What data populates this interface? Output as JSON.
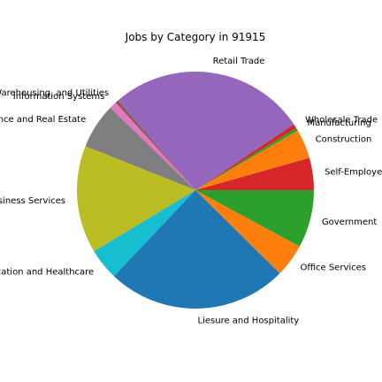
{
  "chart_data": {
    "type": "pie",
    "title": "Jobs by Category in 91915",
    "start_angle_deg": 0,
    "direction": "counterclockwise",
    "slices": [
      {
        "label": "Self-Employed",
        "value": 4.4,
        "color": "#d62728"
      },
      {
        "label": "Construction",
        "value": 4.0,
        "color": "#ff7f0e"
      },
      {
        "label": "Manufacturing",
        "value": 0.4,
        "color": "#2ca02c"
      },
      {
        "label": "Wholesale Trade",
        "value": 0.6,
        "color": "#d62728"
      },
      {
        "label": "Retail Trade",
        "value": 27.0,
        "color": "#9467bd"
      },
      {
        "label": "Transportation, Warehousing, and Utilities",
        "value": 0.4,
        "color": "#8c564b"
      },
      {
        "label": "Information Systems",
        "value": 1.0,
        "color": "#e377c2"
      },
      {
        "label": "Finance and Real Estate",
        "value": 6.2,
        "color": "#7f7f7f"
      },
      {
        "label": "Professional and Business Services",
        "value": 14.7,
        "color": "#bcbd22"
      },
      {
        "label": "Education and Healthcare",
        "value": 4.3,
        "color": "#17becf"
      },
      {
        "label": "Liesure and Hospitality",
        "value": 24.7,
        "color": "#1f77b4"
      },
      {
        "label": "Office Services",
        "value": 4.5,
        "color": "#ff7f0e"
      },
      {
        "label": "Government",
        "value": 7.9,
        "color": "#2ca02c"
      }
    ]
  }
}
